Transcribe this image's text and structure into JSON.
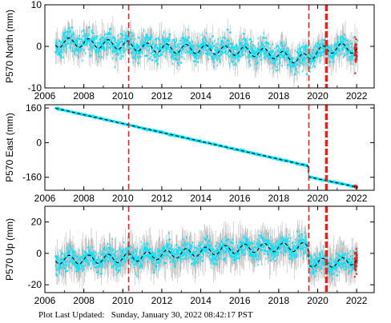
{
  "footer": {
    "label": "Plot Last Updated:",
    "value": "Sunday, January 30, 2022 08:42:17 PST"
  },
  "colors": {
    "errorbar": "#b4b4b4",
    "data": "#00e5ff",
    "model": "#000000",
    "event": "#e8221b",
    "recent": "#e8221b"
  },
  "chart_data": [
    {
      "type": "scatter",
      "id": "north",
      "ylabel": "P570 North (mm)",
      "xlim": [
        2006,
        2022.9
      ],
      "ylim": [
        -10,
        10
      ],
      "xticks": [
        2006,
        2008,
        2010,
        2012,
        2014,
        2016,
        2018,
        2020,
        2022
      ],
      "yticks": [
        -10,
        0,
        10
      ],
      "event_lines": [
        2010.3,
        2019.55,
        2020.45
      ],
      "model": {
        "x": [
          2006.5,
          2007.0,
          2008.0,
          2009.0,
          2010.0,
          2011.0,
          2012.0,
          2013.0,
          2014.0,
          2015.0,
          2016.0,
          2017.0,
          2018.0,
          2018.5,
          2019.0,
          2019.5,
          2020.0,
          2021.0,
          2022.0
        ],
        "y": [
          0.6,
          1.0,
          0.8,
          0.6,
          0.3,
          -0.2,
          -0.5,
          -0.6,
          -0.7,
          -0.9,
          -1.1,
          -1.4,
          -2.0,
          -2.7,
          -3.0,
          -2.6,
          -1.2,
          -0.3,
          -0.6
        ]
      },
      "seasonal_amplitude": 1.1,
      "scatter_sigma": 1.6,
      "errorbar_sigma": 2.0
    },
    {
      "type": "scatter",
      "id": "east",
      "ylabel": "P570 East (mm)",
      "xlim": [
        2006,
        2022.9
      ],
      "ylim": [
        -220,
        175
      ],
      "xticks": [
        2006,
        2008,
        2010,
        2012,
        2014,
        2016,
        2018,
        2020,
        2022
      ],
      "yticks": [
        -160,
        0,
        160
      ],
      "event_lines": [
        2010.3,
        2019.55,
        2020.45
      ],
      "model": {
        "x": [
          2006.0,
          2019.5,
          2019.55,
          2022.0
        ],
        "y": [
          170,
          -107,
          -158,
          -205
        ]
      },
      "seasonal_amplitude": 0,
      "scatter_sigma": 2.2,
      "errorbar_sigma": 2.5
    },
    {
      "type": "scatter",
      "id": "up",
      "ylabel": "P570 Up (mm)",
      "xlim": [
        2006,
        2022.9
      ],
      "ylim": [
        -25,
        30
      ],
      "xticks": [
        2006,
        2008,
        2010,
        2012,
        2014,
        2016,
        2018,
        2020,
        2022
      ],
      "yticks": [
        -20,
        0,
        20
      ],
      "event_lines": [
        2010.3,
        2019.55,
        2020.45
      ],
      "model": {
        "x": [
          2006.5,
          2008.0,
          2010.0,
          2012.0,
          2014.0,
          2016.0,
          2018.0,
          2019.5,
          2019.55,
          2021.0,
          2022.0
        ],
        "y": [
          -4,
          -4,
          -3,
          -1,
          1,
          3,
          4,
          4,
          -6,
          -6,
          -4
        ]
      },
      "seasonal_amplitude": 2.8,
      "scatter_sigma": 4.0,
      "errorbar_sigma": 7.0
    }
  ]
}
